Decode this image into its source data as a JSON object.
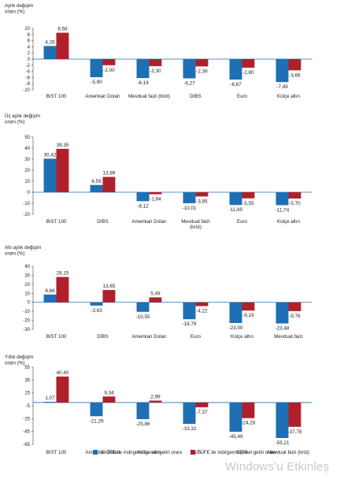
{
  "colors": {
    "blue": "#1f6fb5",
    "red": "#b0202a",
    "zero": "#1f6fb5",
    "axis": "#222222"
  },
  "legend": {
    "series1": "Yİ-ÜFE ile indirgenmiş reel getiri oranı",
    "series2": "TÜFE ile indirgenmiş reel getiri oranı"
  },
  "watermark": "Windows'u Etkinleş",
  "chart_data": [
    {
      "type": "bar",
      "ylabel": [
        "Aylık değişim",
        "oranı (%)"
      ],
      "ylim": [
        -10,
        10
      ],
      "ystep": 2,
      "categories": [
        [
          "BIST 100"
        ],
        [
          "Amerikan Doları"
        ],
        [
          "Mevduat faizi (brüt)"
        ],
        [
          "DİBS"
        ],
        [
          "Euro"
        ],
        [
          "Külçe altın"
        ]
      ],
      "series": [
        {
          "values": [
            4.26,
            -5.9,
            -6.19,
            -6.27,
            -6.67,
            -7.49
          ],
          "labels": [
            "4,26",
            "-5,90",
            "-6,19",
            "-6,27",
            "-6,67",
            "-7,49"
          ]
        },
        {
          "values": [
            8.58,
            -2.0,
            -2.3,
            -2.39,
            -2.8,
            -3.66
          ],
          "labels": [
            "8,58",
            "-2,00",
            "-2,30",
            "-2,39",
            "-2,80",
            "-3,66"
          ]
        }
      ]
    },
    {
      "type": "bar",
      "ylabel": [
        "Üç aylık değişim",
        "oranı (%)"
      ],
      "ylim": [
        -20,
        50
      ],
      "ystep": 10,
      "categories": [
        [
          "BIST 100"
        ],
        [
          "DİBS"
        ],
        [
          "Amerikan Doları"
        ],
        [
          "Mevduat faizi",
          "(brüt)"
        ],
        [
          "Euro"
        ],
        [
          "Külçe altın"
        ]
      ],
      "series": [
        {
          "values": [
            30.42,
            6.59,
            -8.12,
            -10.01,
            -11.6,
            -11.74
          ],
          "labels": [
            "30,42",
            "6,59",
            "-8,12",
            "-10,01",
            "-11,60",
            "-11,74"
          ]
        },
        {
          "values": [
            39.35,
            13.89,
            -1.84,
            -3.85,
            -5.55,
            -5.7
          ],
          "labels": [
            "39,35",
            "13,89",
            "-1,84",
            "-3,85",
            "-5,55",
            "-5,70"
          ]
        }
      ]
    },
    {
      "type": "bar",
      "ylabel": [
        "Altı aylık değişim",
        "oranı (%)"
      ],
      "ylim": [
        -30,
        40
      ],
      "ystep": 10,
      "categories": [
        [
          "BIST 100"
        ],
        [
          "DİBS"
        ],
        [
          "Amerikan Doları"
        ],
        [
          "Euro"
        ],
        [
          "Külçe altın"
        ],
        [
          "Mevduat faizi"
        ]
      ],
      "series": [
        {
          "values": [
            8.66,
            -3.63,
            -10.55,
            -18.79,
            -23.0,
            -23.48
          ],
          "labels": [
            "8,66",
            "-3,63",
            "-10,55",
            "-18,79",
            "-23,00",
            "-23,48"
          ]
        },
        {
          "values": [
            28.15,
            13.65,
            5.49,
            -4.22,
            -9.19,
            -9.76
          ],
          "labels": [
            "28,15",
            "13,65",
            "5,49",
            "-4,22",
            "-9,19",
            "-9,76"
          ]
        }
      ]
    },
    {
      "type": "bar",
      "ylabel": [
        "Yıllık değişim",
        "oranı (%)"
      ],
      "ylim": [
        -65,
        55
      ],
      "ystep": 20,
      "categories": [
        [
          "BIST 100"
        ],
        [
          "Amerikan Doları"
        ],
        [
          "Külçe altın"
        ],
        [
          "Euro"
        ],
        [
          "DİBS"
        ],
        [
          "Mevduat faizi (brüt)"
        ]
      ],
      "series": [
        {
          "values": [
            1.07,
            -21.29,
            -25.86,
            -33.32,
            -45.49,
            -55.21
          ],
          "labels": [
            "1,07",
            "-21,29",
            "-25,86",
            "-33,32",
            "-45,49",
            "-55,21"
          ]
        },
        {
          "values": [
            40.4,
            9.34,
            2.99,
            -7.37,
            -24.28,
            -37.78
          ],
          "labels": [
            "40,40",
            "9,34",
            "2,99",
            "-7,37",
            "-24,28",
            "-37,78"
          ]
        }
      ]
    }
  ]
}
